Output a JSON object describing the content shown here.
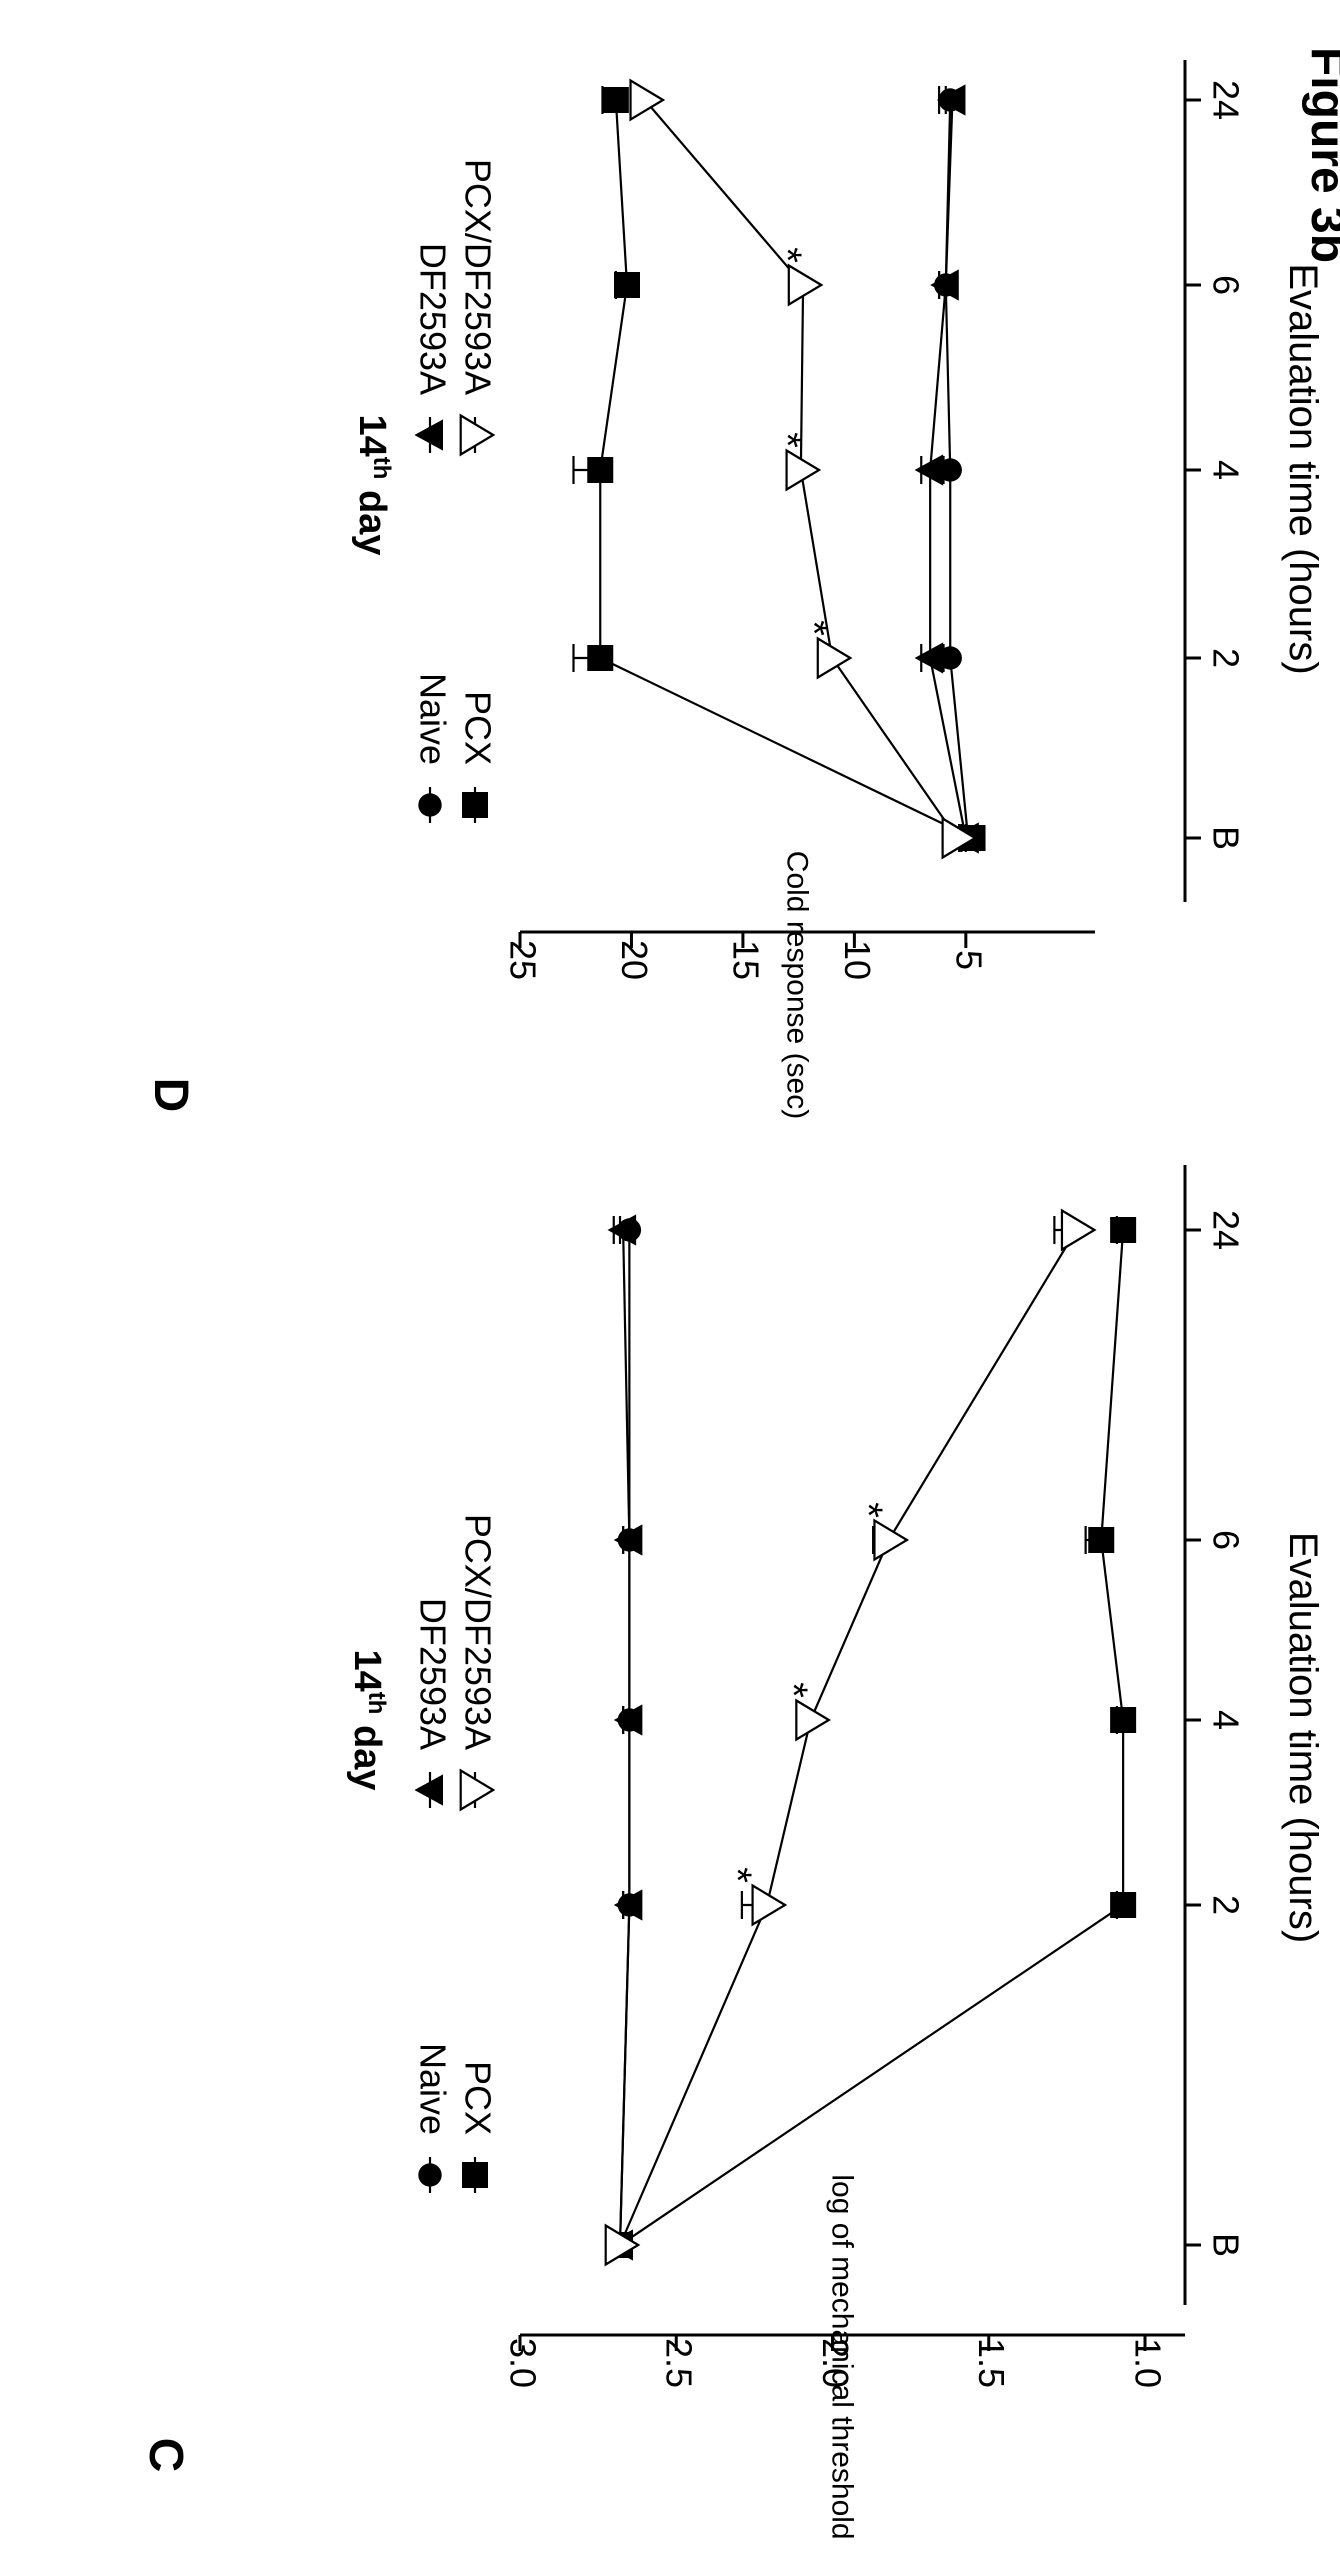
{
  "figure_title": "Figure 3b",
  "chart_data": [
    {
      "type": "line",
      "panel_label": "C",
      "title": "14",
      "title_sup": "th",
      "title_suffix": " day",
      "xlabel": "Evaluation time (hours)",
      "ylabel": "log of mechanical threshold (mg)",
      "categories": [
        "B",
        "2",
        "4",
        "6",
        "24"
      ],
      "ylim": [
        1.0,
        3.0
      ],
      "yticks": [
        "1.0",
        "1.5",
        "2.0",
        "2.5",
        "3.0"
      ],
      "legend_position": "top",
      "series": [
        {
          "name": "Naive",
          "marker": "circle",
          "values": [
            2.68,
            2.65,
            2.65,
            2.65,
            2.65
          ],
          "errors": [
            0.02,
            0.02,
            0.02,
            0.02,
            0.03
          ],
          "significant": [
            false,
            false,
            false,
            false,
            false
          ]
        },
        {
          "name": "PCX",
          "marker": "square",
          "values": [
            2.68,
            1.07,
            1.07,
            1.14,
            1.07
          ],
          "errors": [
            0.02,
            0.02,
            0.02,
            0.05,
            0.02
          ],
          "significant": [
            false,
            false,
            false,
            false,
            false
          ]
        },
        {
          "name": "DF2593A",
          "marker": "triangle-up",
          "values": [
            2.68,
            2.65,
            2.65,
            2.65,
            2.67
          ],
          "errors": [
            0.02,
            0.02,
            0.02,
            0.02,
            0.03
          ],
          "significant": [
            false,
            false,
            false,
            false,
            false
          ]
        },
        {
          "name": "PCX/DF2593A",
          "marker": "triangle-down-open",
          "values": [
            2.68,
            2.21,
            2.07,
            1.82,
            1.22
          ],
          "errors": [
            0.02,
            0.08,
            0.04,
            0.05,
            0.07
          ],
          "significant": [
            false,
            true,
            true,
            true,
            false
          ]
        }
      ]
    },
    {
      "type": "line",
      "panel_label": "D",
      "title": "14",
      "title_sup": "th",
      "title_suffix": " day",
      "xlabel": "Evaluation time (hours)",
      "ylabel": "Cold response (sec)",
      "categories": [
        "B",
        "2",
        "4",
        "6",
        "24"
      ],
      "ylim": [
        1,
        25
      ],
      "yticks": [
        "5",
        "10",
        "15",
        "20",
        "25"
      ],
      "legend_position": "top",
      "series": [
        {
          "name": "Naive",
          "marker": "circle",
          "values": [
            4.9,
            5.7,
            5.7,
            5.9,
            5.7
          ],
          "errors": [
            0.3,
            0.3,
            0.3,
            0.3,
            0.5
          ],
          "significant": [
            false,
            false,
            false,
            false,
            false
          ]
        },
        {
          "name": "PCX",
          "marker": "square",
          "values": [
            4.7,
            21.4,
            21.4,
            20.2,
            20.7
          ],
          "errors": [
            0.3,
            1.2,
            1.2,
            0.5,
            0.6
          ],
          "significant": [
            false,
            false,
            false,
            false,
            false
          ]
        },
        {
          "name": "DF2593A",
          "marker": "triangle-up",
          "values": [
            5.0,
            6.6,
            6.6,
            5.9,
            5.6
          ],
          "errors": [
            0.3,
            0.4,
            0.4,
            0.3,
            0.3
          ],
          "significant": [
            false,
            false,
            false,
            false,
            false
          ]
        },
        {
          "name": "PCX/DF2593A",
          "marker": "triangle-down-open",
          "values": [
            5.4,
            11.0,
            12.4,
            12.3,
            19.4
          ],
          "errors": [
            0.3,
            0.6,
            0.4,
            0.5,
            0.6
          ],
          "significant": [
            false,
            true,
            true,
            true,
            false
          ]
        }
      ]
    }
  ]
}
